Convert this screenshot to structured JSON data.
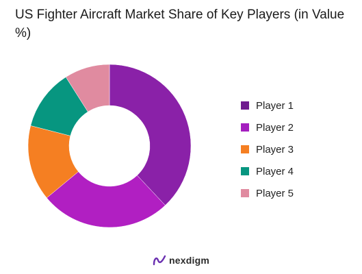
{
  "chart_data": {
    "type": "pie",
    "title": "US Fighter Aircraft Market Share of Key Players (in Value %)",
    "categories": [
      "Player 1",
      "Player 2",
      "Player 3",
      "Player 4",
      "Player 5"
    ],
    "values": [
      38,
      26,
      15,
      12,
      9
    ],
    "colors": [
      "#8a21a8",
      "#b11fc2",
      "#f57f22",
      "#079680",
      "#e08ba0"
    ],
    "legend_colors": [
      "#701b8f",
      "#a41fbf",
      "#f57f22",
      "#079680",
      "#e08ba0"
    ],
    "donut": true,
    "legend_position": "right"
  },
  "brand": {
    "name": "nexdigm",
    "icon": "nexdigm-logo-icon"
  }
}
